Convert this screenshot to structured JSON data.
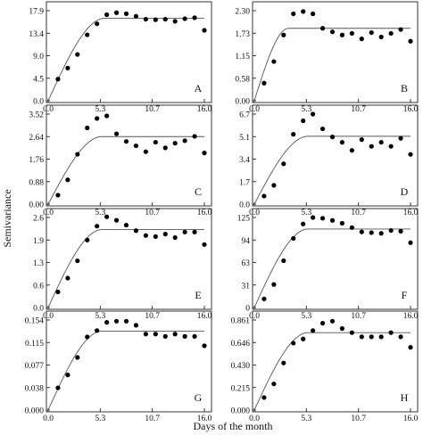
{
  "figure": {
    "xlabel": "Days of the month",
    "ylabel": "Semivariance"
  },
  "chart_data": [
    {
      "type": "scatter",
      "panel": "A",
      "x_ticks": [
        "0.0",
        "5.3",
        "10.7",
        "16.0"
      ],
      "y_ticks": [
        "0.0",
        "4.5",
        "9.0",
        "13.4",
        "17.9"
      ],
      "xlim": [
        0,
        16
      ],
      "ylim": [
        0,
        17.9
      ],
      "points": [
        [
          1,
          4.3
        ],
        [
          2,
          6.5
        ],
        [
          3,
          9.2
        ],
        [
          4,
          13.1
        ],
        [
          5,
          15.3
        ],
        [
          6,
          17.1
        ],
        [
          7,
          17.5
        ],
        [
          8,
          17.3
        ],
        [
          9,
          16.8
        ],
        [
          10,
          16.2
        ],
        [
          11,
          16.1
        ],
        [
          12,
          16.2
        ],
        [
          13,
          15.8
        ],
        [
          14,
          16.3
        ],
        [
          15,
          16.5
        ],
        [
          16,
          14.0
        ]
      ],
      "model": {
        "nugget": 0,
        "sill": 16.4,
        "range": 5.8
      }
    },
    {
      "type": "scatter",
      "panel": "B",
      "x_ticks": [
        "0.0",
        "5.3",
        "10.7",
        "16.0"
      ],
      "y_ticks": [
        "0.00",
        "0.58",
        "1.15",
        "1.73",
        "2.30"
      ],
      "xlim": [
        0,
        16
      ],
      "ylim": [
        0,
        2.3
      ],
      "points": [
        [
          1,
          0.45
        ],
        [
          2,
          1.0
        ],
        [
          3,
          1.68
        ],
        [
          4,
          2.22
        ],
        [
          5,
          2.28
        ],
        [
          6,
          2.22
        ],
        [
          7,
          1.85
        ],
        [
          8,
          1.76
        ],
        [
          9,
          1.68
        ],
        [
          10,
          1.72
        ],
        [
          11,
          1.58
        ],
        [
          12,
          1.74
        ],
        [
          13,
          1.63
        ],
        [
          14,
          1.72
        ],
        [
          15,
          1.82
        ],
        [
          16,
          1.52
        ]
      ],
      "model": {
        "nugget": 0,
        "sill": 1.85,
        "range": 3.5
      }
    },
    {
      "type": "scatter",
      "panel": "C",
      "x_ticks": [
        "0.0",
        "5.3",
        "10.7",
        "16.0"
      ],
      "y_ticks": [
        "0.00",
        "0.88",
        "1.76",
        "2.64",
        "3.52"
      ],
      "xlim": [
        0,
        16
      ],
      "ylim": [
        0,
        3.52
      ],
      "points": [
        [
          1,
          0.35
        ],
        [
          2,
          0.95
        ],
        [
          3,
          1.95
        ],
        [
          4,
          2.98
        ],
        [
          5,
          3.35
        ],
        [
          6,
          3.45
        ],
        [
          7,
          2.75
        ],
        [
          8,
          2.45
        ],
        [
          9,
          2.28
        ],
        [
          10,
          2.05
        ],
        [
          11,
          2.42
        ],
        [
          12,
          2.2
        ],
        [
          13,
          2.38
        ],
        [
          14,
          2.48
        ],
        [
          15,
          2.65
        ],
        [
          16,
          2.0
        ]
      ],
      "model": {
        "nugget": 0,
        "sill": 2.64,
        "range": 5.5
      }
    },
    {
      "type": "scatter",
      "panel": "D",
      "x_ticks": [
        "0.0",
        "5.3",
        "10.7",
        "16.0"
      ],
      "y_ticks": [
        "0.0",
        "1.7",
        "3.4",
        "5.1",
        "6.7"
      ],
      "xlim": [
        0,
        16
      ],
      "ylim": [
        0,
        6.7
      ],
      "points": [
        [
          1,
          0.6
        ],
        [
          2,
          1.4
        ],
        [
          3,
          3.0
        ],
        [
          4,
          5.2
        ],
        [
          5,
          6.2
        ],
        [
          6,
          6.7
        ],
        [
          7,
          5.6
        ],
        [
          8,
          5.0
        ],
        [
          9,
          4.6
        ],
        [
          10,
          4.0
        ],
        [
          11,
          4.8
        ],
        [
          12,
          4.3
        ],
        [
          13,
          4.6
        ],
        [
          14,
          4.3
        ],
        [
          15,
          4.9
        ],
        [
          16,
          3.7
        ]
      ],
      "model": {
        "nugget": 0,
        "sill": 5.05,
        "range": 5.5
      }
    },
    {
      "type": "scatter",
      "panel": "E",
      "x_ticks": [
        "0.0",
        "5.3",
        "10.7",
        "16.0"
      ],
      "y_ticks": [
        "0.0",
        "0.6",
        "1.3",
        "1.9",
        "2.6"
      ],
      "xlim": [
        0,
        16
      ],
      "ylim": [
        0,
        2.6
      ],
      "points": [
        [
          1,
          0.45
        ],
        [
          2,
          0.85
        ],
        [
          3,
          1.35
        ],
        [
          4,
          1.95
        ],
        [
          5,
          2.35
        ],
        [
          6,
          2.62
        ],
        [
          7,
          2.52
        ],
        [
          8,
          2.38
        ],
        [
          9,
          2.22
        ],
        [
          10,
          2.08
        ],
        [
          11,
          2.05
        ],
        [
          12,
          2.12
        ],
        [
          13,
          2.02
        ],
        [
          14,
          2.18
        ],
        [
          15,
          2.18
        ],
        [
          16,
          1.82
        ]
      ],
      "model": {
        "nugget": 0,
        "sill": 2.25,
        "range": 5.5
      }
    },
    {
      "type": "scatter",
      "panel": "F",
      "x_ticks": [
        "0.0",
        "5.3",
        "10.7",
        "16.0"
      ],
      "y_ticks": [
        "0",
        "31",
        "63",
        "94",
        "125"
      ],
      "xlim": [
        0,
        16
      ],
      "ylim": [
        0,
        125
      ],
      "points": [
        [
          1,
          12
        ],
        [
          2,
          32
        ],
        [
          3,
          65
        ],
        [
          4,
          96
        ],
        [
          5,
          116
        ],
        [
          6,
          125
        ],
        [
          7,
          124
        ],
        [
          8,
          121
        ],
        [
          9,
          117
        ],
        [
          10,
          111
        ],
        [
          11,
          105
        ],
        [
          12,
          104
        ],
        [
          13,
          103
        ],
        [
          14,
          107
        ],
        [
          15,
          106
        ],
        [
          16,
          90
        ]
      ],
      "model": {
        "nugget": 0,
        "sill": 109,
        "range": 5.5
      }
    },
    {
      "type": "scatter",
      "panel": "G",
      "x_ticks": [
        "0.0",
        "5.3",
        "10.7",
        "16.0"
      ],
      "y_ticks": [
        "0.000",
        "0.038",
        "0.077",
        "0.115",
        "0.154"
      ],
      "xlim": [
        0,
        16
      ],
      "ylim": [
        0,
        0.154
      ],
      "points": [
        [
          1,
          0.038
        ],
        [
          2,
          0.06
        ],
        [
          3,
          0.09
        ],
        [
          4,
          0.125
        ],
        [
          5,
          0.136
        ],
        [
          6,
          0.15
        ],
        [
          7,
          0.152
        ],
        [
          8,
          0.152
        ],
        [
          9,
          0.145
        ],
        [
          10,
          0.13
        ],
        [
          11,
          0.13
        ],
        [
          12,
          0.126
        ],
        [
          13,
          0.13
        ],
        [
          14,
          0.126
        ],
        [
          15,
          0.126
        ],
        [
          16,
          0.11
        ]
      ],
      "model": {
        "nugget": 0,
        "sill": 0.135,
        "range": 5.5
      }
    },
    {
      "type": "scatter",
      "panel": "H",
      "x_ticks": [
        "0.0",
        "5.3",
        "10.7",
        "16.0"
      ],
      "y_ticks": [
        "0.000",
        "0.215",
        "0.430",
        "0.646",
        "0.861"
      ],
      "xlim": [
        0,
        16
      ],
      "ylim": [
        0,
        0.861
      ],
      "points": [
        [
          1,
          0.12
        ],
        [
          2,
          0.25
        ],
        [
          3,
          0.45
        ],
        [
          4,
          0.64
        ],
        [
          5,
          0.68
        ],
        [
          6,
          0.76
        ],
        [
          7,
          0.83
        ],
        [
          8,
          0.85
        ],
        [
          9,
          0.78
        ],
        [
          10,
          0.74
        ],
        [
          11,
          0.7
        ],
        [
          12,
          0.7
        ],
        [
          13,
          0.7
        ],
        [
          14,
          0.74
        ],
        [
          15,
          0.7
        ],
        [
          16,
          0.6
        ]
      ],
      "model": {
        "nugget": 0,
        "sill": 0.74,
        "range": 5.5
      }
    }
  ]
}
